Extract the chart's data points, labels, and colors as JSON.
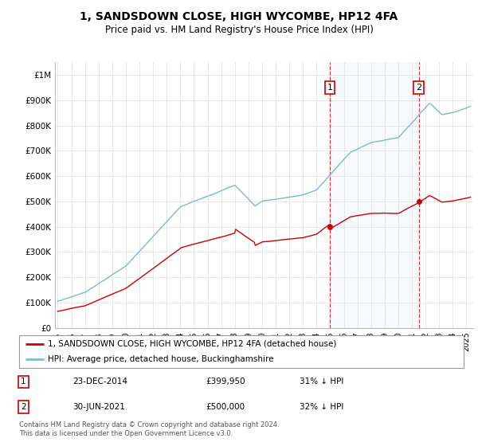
{
  "title": "1, SANDSDOWN CLOSE, HIGH WYCOMBE, HP12 4FA",
  "subtitle": "Price paid vs. HM Land Registry's House Price Index (HPI)",
  "ylabel_ticks": [
    "£0",
    "£100K",
    "£200K",
    "£300K",
    "£400K",
    "£500K",
    "£600K",
    "£700K",
    "£800K",
    "£900K",
    "£1M"
  ],
  "ytick_values": [
    0,
    100000,
    200000,
    300000,
    400000,
    500000,
    600000,
    700000,
    800000,
    900000,
    1000000
  ],
  "ylim": [
    0,
    1050000
  ],
  "xlim_start": 1994.8,
  "xlim_end": 2025.5,
  "hpi_color": "#7bb8d4",
  "price_color": "#cc0000",
  "marker1_date": 2014.97,
  "marker1_price": 399950,
  "marker1_label": "23-DEC-2014",
  "marker1_text": "£399,950",
  "marker1_pct": "31% ↓ HPI",
  "marker2_date": 2021.5,
  "marker2_price": 500000,
  "marker2_label": "30-JUN-2021",
  "marker2_text": "£500,000",
  "marker2_pct": "32% ↓ HPI",
  "legend_line1": "1, SANDSDOWN CLOSE, HIGH WYCOMBE, HP12 4FA (detached house)",
  "legend_line2": "HPI: Average price, detached house, Buckinghamshire",
  "footnote": "Contains HM Land Registry data © Crown copyright and database right 2024.\nThis data is licensed under the Open Government Licence v3.0.",
  "background_color": "#ffffff",
  "grid_color": "#dddddd",
  "shade_color": "#ddeeff"
}
